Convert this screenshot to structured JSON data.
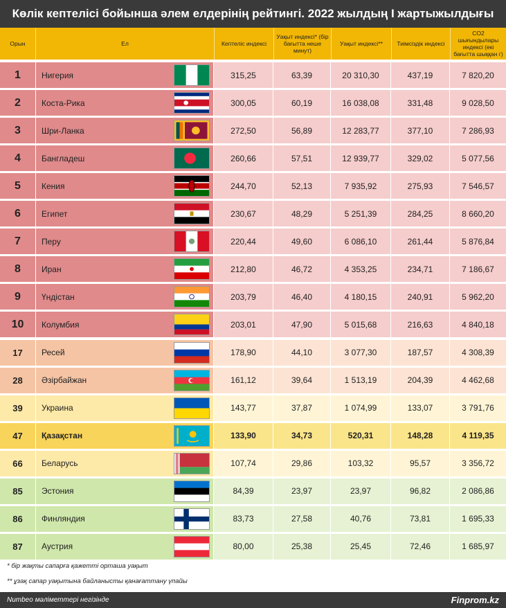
{
  "chart_data": {
    "type": "table",
    "title": "Көлік кептелісі бойынша әлем елдерінің рейтингі. 2022 жылдың I жартыжылдығы",
    "columns": [
      "Орын",
      "Ел",
      "",
      "Кептеліс индексі",
      "Уақыт индексі* (бір бағытта неше минут)",
      "Уақыт индексі**",
      "Тиімсіздік индексі",
      "CO2 шығындылары индексі (екі бағытта шыққан г)"
    ],
    "rows": [
      {
        "rank": "1",
        "country": "Нигерия",
        "flag": "nigeria-flag",
        "congestion": "315,25",
        "time_min": "63,39",
        "time_index": "20 310,30",
        "inefficiency": "437,19",
        "co2": "7 820,20",
        "tier": "top"
      },
      {
        "rank": "2",
        "country": "Коста-Рика",
        "flag": "costa-rica-flag",
        "congestion": "300,05",
        "time_min": "60,19",
        "time_index": "16 038,08",
        "inefficiency": "331,48",
        "co2": "9 028,50",
        "tier": "top"
      },
      {
        "rank": "3",
        "country": "Шри-Ланка",
        "flag": "sri-lanka-flag",
        "congestion": "272,50",
        "time_min": "56,89",
        "time_index": "12 283,77",
        "inefficiency": "377,10",
        "co2": "7 286,93",
        "tier": "top"
      },
      {
        "rank": "4",
        "country": "Бангладеш",
        "flag": "bangladesh-flag",
        "congestion": "260,66",
        "time_min": "57,51",
        "time_index": "12 939,77",
        "inefficiency": "329,02",
        "co2": "5 077,56",
        "tier": "top"
      },
      {
        "rank": "5",
        "country": "Кения",
        "flag": "kenya-flag",
        "congestion": "244,70",
        "time_min": "52,13",
        "time_index": "7 935,92",
        "inefficiency": "275,93",
        "co2": "7 546,57",
        "tier": "top"
      },
      {
        "rank": "6",
        "country": "Египет",
        "flag": "egypt-flag",
        "congestion": "230,67",
        "time_min": "48,29",
        "time_index": "5 251,39",
        "inefficiency": "284,25",
        "co2": "8 660,20",
        "tier": "top"
      },
      {
        "rank": "7",
        "country": "Перу",
        "flag": "peru-flag",
        "congestion": "220,44",
        "time_min": "49,60",
        "time_index": "6 086,10",
        "inefficiency": "261,44",
        "co2": "5 876,84",
        "tier": "top"
      },
      {
        "rank": "8",
        "country": "Иран",
        "flag": "iran-flag",
        "congestion": "212,80",
        "time_min": "46,72",
        "time_index": "4 353,25",
        "inefficiency": "234,71",
        "co2": "7 186,67",
        "tier": "top"
      },
      {
        "rank": "9",
        "country": "Үндістан",
        "flag": "india-flag",
        "congestion": "203,79",
        "time_min": "46,40",
        "time_index": "4 180,15",
        "inefficiency": "240,91",
        "co2": "5 962,20",
        "tier": "top"
      },
      {
        "rank": "10",
        "country": "Колумбия",
        "flag": "colombia-flag",
        "congestion": "203,01",
        "time_min": "47,90",
        "time_index": "5 015,68",
        "inefficiency": "216,63",
        "co2": "4 840,18",
        "tier": "top"
      },
      {
        "rank": "17",
        "country": "Ресей",
        "flag": "russia-flag",
        "congestion": "178,90",
        "time_min": "44,10",
        "time_index": "3 077,30",
        "inefficiency": "187,57",
        "co2": "4 308,39",
        "tier": "peach"
      },
      {
        "rank": "28",
        "country": "Әзірбайжан",
        "flag": "azerbaijan-flag",
        "congestion": "161,12",
        "time_min": "39,64",
        "time_index": "1 513,19",
        "inefficiency": "204,39",
        "co2": "4 462,68",
        "tier": "peach"
      },
      {
        "rank": "39",
        "country": "Украина",
        "flag": "ukraine-flag",
        "congestion": "143,77",
        "time_min": "37,87",
        "time_index": "1 074,99",
        "inefficiency": "133,07",
        "co2": "3 791,76",
        "tier": "yellow"
      },
      {
        "rank": "47",
        "country": "Қазақстан",
        "flag": "kazakhstan-flag",
        "congestion": "133,90",
        "time_min": "34,73",
        "time_index": "520,31",
        "inefficiency": "148,28",
        "co2": "4 119,35",
        "tier": "highlight"
      },
      {
        "rank": "66",
        "country": "Беларусь",
        "flag": "belarus-flag",
        "congestion": "107,74",
        "time_min": "29,86",
        "time_index": "103,32",
        "inefficiency": "95,57",
        "co2": "3 356,72",
        "tier": "yellow"
      },
      {
        "rank": "85",
        "country": "Эстония",
        "flag": "estonia-flag",
        "congestion": "84,39",
        "time_min": "23,97",
        "time_index": "23,97",
        "inefficiency": "96,82",
        "co2": "2 086,86",
        "tier": "green"
      },
      {
        "rank": "86",
        "country": "Финляндия",
        "flag": "finland-flag",
        "congestion": "83,73",
        "time_min": "27,58",
        "time_index": "40,76",
        "inefficiency": "73,81",
        "co2": "1 695,33",
        "tier": "green"
      },
      {
        "rank": "87",
        "country": "Аустрия",
        "flag": "austria-flag",
        "congestion": "80,00",
        "time_min": "25,38",
        "time_index": "25,45",
        "inefficiency": "72,46",
        "co2": "1 685,97",
        "tier": "green"
      }
    ]
  },
  "tier_colors": {
    "top": {
      "rank": "#e08a8b",
      "name": "#e08a8b",
      "data": "#f5cdcc"
    },
    "peach": {
      "rank": "#f5c4a4",
      "name": "#f5c4a4",
      "data": "#fce3d3"
    },
    "yellow": {
      "rank": "#fde9a8",
      "name": "#fde9a8",
      "data": "#fff5d6"
    },
    "highlight": {
      "rank": "#f9d45a",
      "name": "#f9d45a",
      "data": "#fbe58a"
    },
    "green": {
      "rank": "#cfe7ab",
      "name": "#cfe7ab",
      "data": "#e6f2d3"
    }
  },
  "colors": {
    "title_bg": "#3a3a3a",
    "header_bg": "#f2b705"
  },
  "footnotes": {
    "one": "* бір жақты сапарға қажетті орташа уақыт",
    "two": "** ұзақ сапар уақытына байланысты қанағаттану үпайы"
  },
  "footer": {
    "source": "Numbeo мәліметтері негізінде",
    "brand": "Finprom.kz"
  }
}
